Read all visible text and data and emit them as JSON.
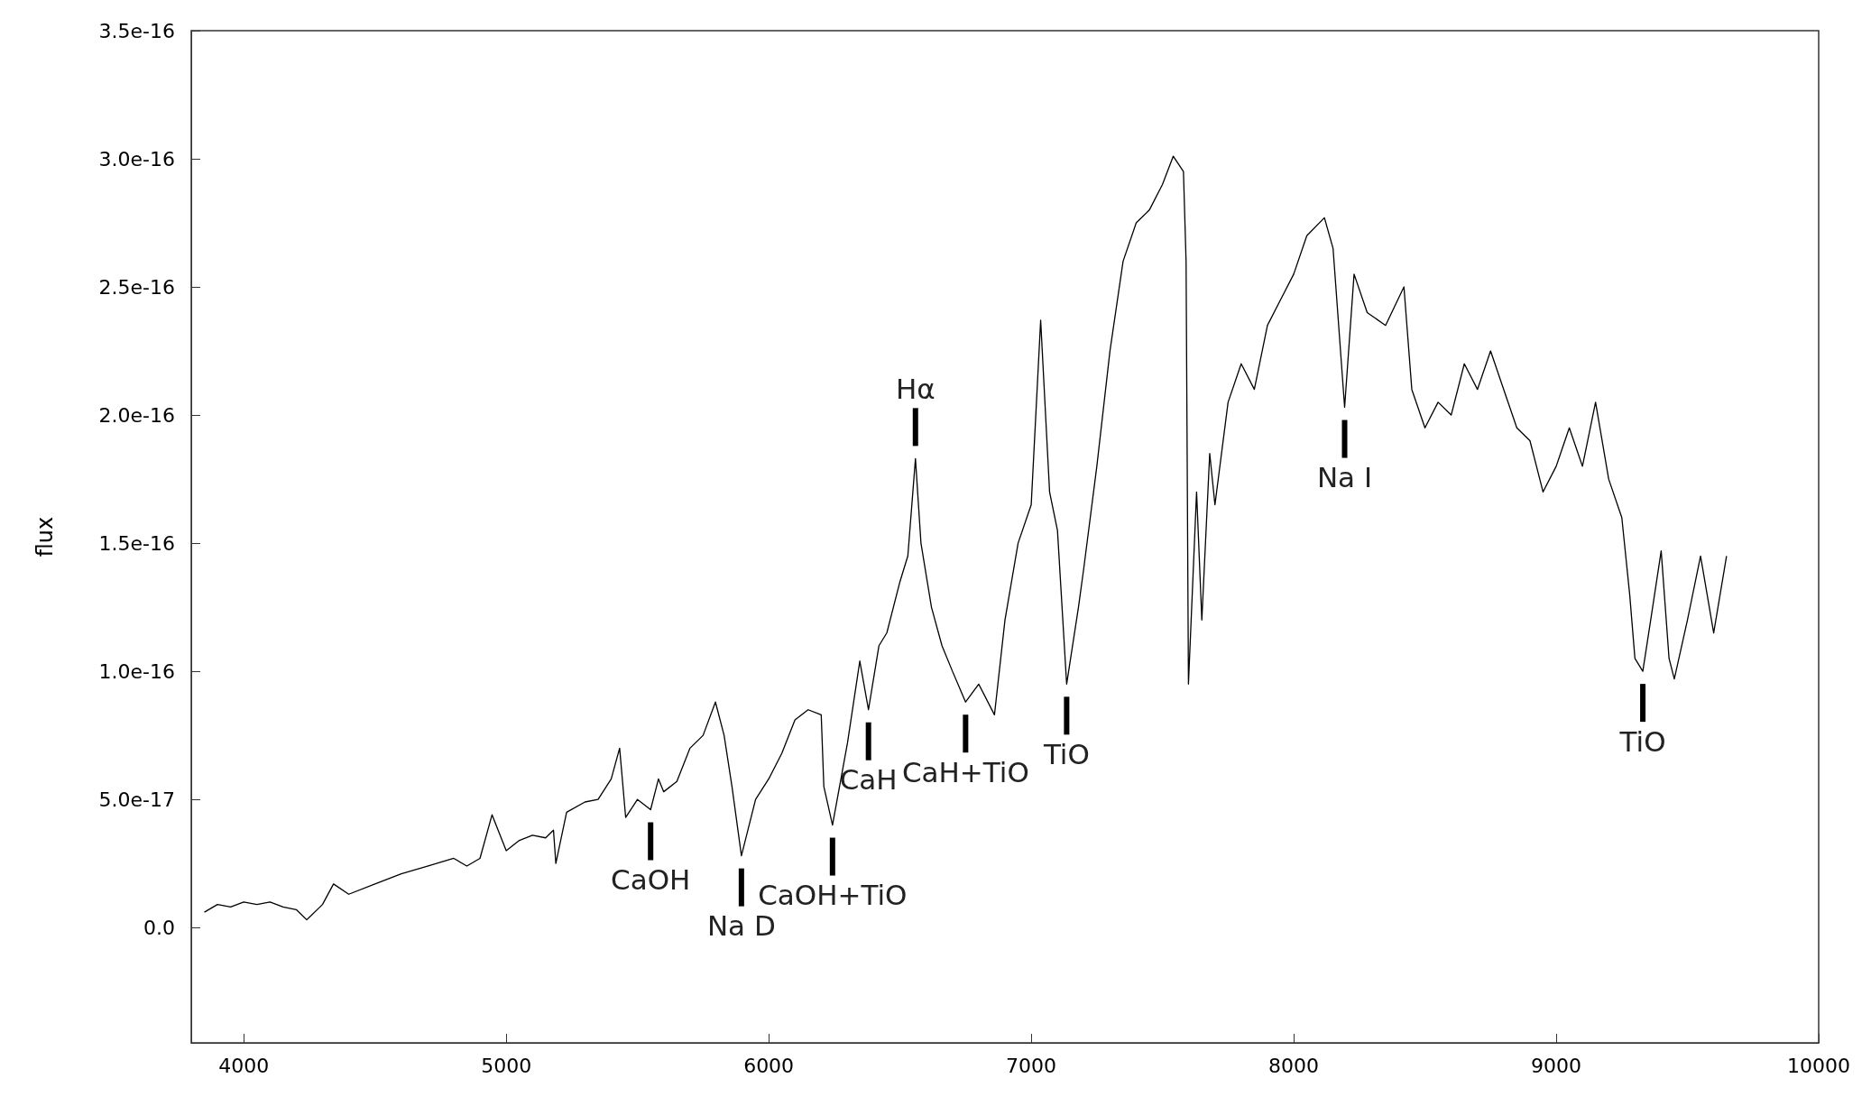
{
  "chart_data": {
    "type": "line",
    "ylabel": "flux",
    "xlim": [
      3800,
      10000
    ],
    "xticks": [
      4000,
      5000,
      6000,
      7000,
      8000,
      9000,
      10000
    ],
    "ylim": [
      -4.5e-17,
      3.5e-16
    ],
    "yticks": [
      {
        "value": 0,
        "label": "0.0"
      },
      {
        "value": 5e-17,
        "label": "5.0e-17"
      },
      {
        "value": 1e-16,
        "label": "1.0e-16"
      },
      {
        "value": 1.5e-16,
        "label": "1.5e-16"
      },
      {
        "value": 2e-16,
        "label": "2.0e-16"
      },
      {
        "value": 2.5e-16,
        "label": "2.5e-16"
      },
      {
        "value": 3e-16,
        "label": "3.0e-16"
      },
      {
        "value": 3.5e-16,
        "label": "3.5e-16"
      }
    ],
    "grid": false,
    "marker": "none",
    "line_style": "solid",
    "series": [
      {
        "color": "#000000",
        "x": [
          3850,
          3900,
          3950,
          4000,
          4050,
          4100,
          4150,
          4200,
          4240,
          4300,
          4342,
          4400,
          4500,
          4600,
          4700,
          4800,
          4850,
          4900,
          4946,
          5000,
          5050,
          5100,
          5150,
          5180,
          5189,
          5230,
          5300,
          5350,
          5400,
          5432,
          5455,
          5500,
          5550,
          5580,
          5600,
          5650,
          5700,
          5750,
          5797,
          5830,
          5860,
          5896,
          5950,
          6000,
          6050,
          6100,
          6150,
          6200,
          6210,
          6243,
          6300,
          6347,
          6380,
          6420,
          6450,
          6500,
          6530,
          6559,
          6580,
          6620,
          6660,
          6700,
          6750,
          6800,
          6860,
          6900,
          6950,
          7000,
          7036,
          7070,
          7100,
          7135,
          7180,
          7200,
          7250,
          7300,
          7350,
          7400,
          7450,
          7500,
          7541,
          7580,
          7590,
          7599,
          7630,
          7650,
          7680,
          7700,
          7750,
          7800,
          7850,
          7900,
          7950,
          8000,
          8050,
          8117,
          8150,
          8194,
          8230,
          8280,
          8350,
          8420,
          8450,
          8500,
          8550,
          8600,
          8650,
          8700,
          8750,
          8800,
          8850,
          8900,
          8950,
          9000,
          9050,
          9100,
          9150,
          9200,
          9250,
          9280,
          9300,
          9330,
          9360,
          9400,
          9430,
          9450,
          9500,
          9550,
          9600,
          9649
        ],
        "values": [
          6e-18,
          9e-18,
          8e-18,
          1e-17,
          9e-18,
          1e-17,
          8e-18,
          7e-18,
          3e-18,
          9e-18,
          1.7e-17,
          1.3e-17,
          1.7e-17,
          2.1e-17,
          2.4e-17,
          2.7e-17,
          2.4e-17,
          2.7e-17,
          4.4e-17,
          3e-17,
          3.4e-17,
          3.6e-17,
          3.5e-17,
          3.8e-17,
          2.5e-17,
          4.5e-17,
          4.9e-17,
          5e-17,
          5.8e-17,
          7e-17,
          4.3e-17,
          5e-17,
          4.6e-17,
          5.8e-17,
          5.3e-17,
          5.7e-17,
          7e-17,
          7.5e-17,
          8.8e-17,
          7.5e-17,
          5.5e-17,
          2.8e-17,
          5e-17,
          5.8e-17,
          6.8e-17,
          8.1e-17,
          8.5e-17,
          8.3e-17,
          5.5e-17,
          4e-17,
          7.2e-17,
          1.04e-16,
          8.5e-17,
          1.1e-16,
          1.15e-16,
          1.35e-16,
          1.45e-16,
          1.83e-16,
          1.5e-16,
          1.25e-16,
          1.1e-16,
          1e-16,
          8.8e-17,
          9.5e-17,
          8.3e-17,
          1.2e-16,
          1.5e-16,
          1.65e-16,
          2.37e-16,
          1.7e-16,
          1.55e-16,
          9.5e-17,
          1.25e-16,
          1.4e-16,
          1.8e-16,
          2.25e-16,
          2.6e-16,
          2.75e-16,
          2.8e-16,
          2.9e-16,
          3.01e-16,
          2.95e-16,
          2.6e-16,
          9.5e-17,
          1.7e-16,
          1.2e-16,
          1.85e-16,
          1.65e-16,
          2.05e-16,
          2.2e-16,
          2.1e-16,
          2.35e-16,
          2.45e-16,
          2.55e-16,
          2.7e-16,
          2.77e-16,
          2.65e-16,
          2.03e-16,
          2.55e-16,
          2.4e-16,
          2.35e-16,
          2.5e-16,
          2.1e-16,
          1.95e-16,
          2.05e-16,
          2e-16,
          2.2e-16,
          2.1e-16,
          2.25e-16,
          2.1e-16,
          1.95e-16,
          1.9e-16,
          1.7e-16,
          1.8e-16,
          1.95e-16,
          1.8e-16,
          2.05e-16,
          1.75e-16,
          1.6e-16,
          1.3e-16,
          1.05e-16,
          1e-16,
          1.2e-16,
          1.47e-16,
          1.05e-16,
          9.7e-17,
          1.2e-16,
          1.45e-16,
          1.15e-16,
          1.45e-16
        ]
      }
    ],
    "annotations": [
      {
        "text": "CaOH",
        "x": 5550,
        "y": 4.6e-17
      },
      {
        "text": "Na D",
        "x": 5896,
        "y": 2.8e-17
      },
      {
        "text": "CaOH+TiO",
        "x": 6243,
        "y": 4e-17
      },
      {
        "text": "CaH",
        "x": 6380,
        "y": 8.5e-17
      },
      {
        "text": "Hα",
        "x": 6559,
        "y": 1.83e-16
      },
      {
        "text": "CaH+TiO",
        "x": 6750,
        "y": 8.8e-17
      },
      {
        "text": "TiO",
        "x": 7135,
        "y": 9.5e-17
      },
      {
        "text": "Na I",
        "x": 8194,
        "y": 2.03e-16
      },
      {
        "text": "TiO",
        "x": 9330,
        "y": 1e-16
      }
    ]
  }
}
